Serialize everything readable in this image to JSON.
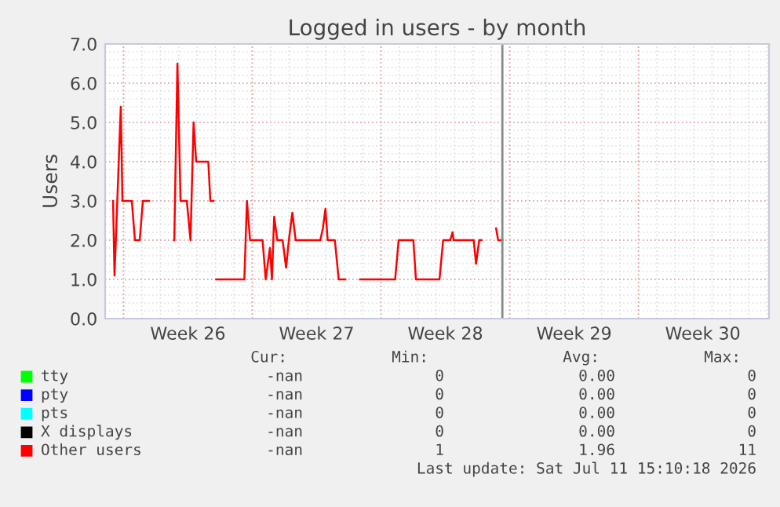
{
  "chart_data": {
    "type": "line",
    "title": "Logged in users - by month",
    "ylabel": "Users",
    "xlim": [
      "2026-06-20T00:00",
      "2026-07-26T02:24"
    ],
    "xticks": [
      {
        "value": "2026-06-24T12:00",
        "label": "Week 26"
      },
      {
        "value": "2026-07-01T12:00",
        "label": "Week 27"
      },
      {
        "value": "2026-07-08T12:00",
        "label": "Week 28"
      },
      {
        "value": "2026-07-15T12:00",
        "label": "Week 29"
      },
      {
        "value": "2026-07-22T12:00",
        "label": "Week 30"
      }
    ],
    "ylim": [
      0,
      7
    ],
    "yticks": [
      {
        "value": 0,
        "label": "0.0"
      },
      {
        "value": 1,
        "label": "1.0"
      },
      {
        "value": 2,
        "label": "2.0"
      },
      {
        "value": 3,
        "label": "3.0"
      },
      {
        "value": 4,
        "label": "4.0"
      },
      {
        "value": 5,
        "label": "5.0"
      },
      {
        "value": 6,
        "label": "6.0"
      },
      {
        "value": 7,
        "label": "7.0"
      }
    ],
    "grid": true,
    "legend": "bottom",
    "series": [
      {
        "name": "tty",
        "color": "#00ff00"
      },
      {
        "name": "pty",
        "color": "#0000ff"
      },
      {
        "name": "pts",
        "color": "#00ffff"
      },
      {
        "name": "X displays",
        "color": "#000000"
      },
      {
        "name": "Other users",
        "color": "#ff0000",
        "x": [
          "2026-06-20T10:19",
          "2026-06-20T12:14",
          "2026-06-20T20:24",
          "2026-06-20T22:34",
          "2026-06-21T10:48",
          "2026-06-21T14:53",
          "2026-06-21T21:07",
          "2026-06-22T01:12",
          "2026-06-22T09:22",
          "2026-06-23T00:00",
          "2026-06-23T18:14",
          "2026-06-23T22:19",
          "2026-06-24T02:24",
          "2026-06-24T10:34",
          "2026-06-24T15:22",
          "2026-06-24T19:26",
          "2026-06-24T22:48",
          "2026-06-25T14:38",
          "2026-06-25T17:17",
          "2026-06-25T21:22",
          "2026-06-25T22:48",
          "2026-06-26T00:58",
          "2026-06-27T13:41",
          "2026-06-27T17:02",
          "2026-06-27T21:07",
          "2026-06-28T13:26",
          "2026-06-28T17:31",
          "2026-06-28T23:02",
          "2026-06-29T01:41",
          "2026-06-29T04:34",
          "2026-06-29T08:38",
          "2026-06-29T15:36",
          "2026-06-29T20:10",
          "2026-06-29T23:46",
          "2026-06-30T04:19",
          "2026-06-30T08:38",
          "2026-07-01T16:48",
          "2026-07-01T20:10",
          "2026-07-01T23:31",
          "2026-07-02T02:24",
          "2026-07-02T11:46",
          "2026-07-02T16:48",
          "2026-07-03T01:26",
          "2026-07-03T12:00",
          "2026-07-03T20:38",
          "2026-07-05T18:29",
          "2026-07-05T23:02",
          "2026-07-06T18:14",
          "2026-07-06T21:36",
          "2026-07-08T04:19",
          "2026-07-08T09:07",
          "2026-07-08T18:14",
          "2026-07-08T21:22",
          "2026-07-08T22:48",
          "2026-07-10T00:58",
          "2026-07-10T04:05",
          "2026-07-10T08:10",
          "2026-07-10T11:02",
          "2026-07-11T00:00",
          "2026-07-11T06:14",
          "2026-07-11T08:53",
          "2026-07-11T14:24"
        ],
        "values": [
          3.0,
          1.1,
          5.4,
          3.0,
          3.0,
          2.0,
          2.0,
          3.0,
          3.0,
          null,
          2.0,
          6.5,
          3.0,
          3.0,
          2.0,
          5.0,
          4.0,
          4.0,
          3.0,
          3.0,
          null,
          1.0,
          1.0,
          3.0,
          2.0,
          2.0,
          1.0,
          1.8,
          1.0,
          2.6,
          2.0,
          2.0,
          1.3,
          2.0,
          2.7,
          2.0,
          2.0,
          2.3,
          2.8,
          2.0,
          2.0,
          1.0,
          1.0,
          null,
          1.0,
          1.0,
          2.0,
          2.0,
          1.0,
          1.0,
          2.0,
          2.0,
          2.2,
          2.0,
          2.0,
          1.4,
          2.0,
          2.0,
          null,
          2.3,
          2.0,
          2.0
        ]
      }
    ],
    "ref_lines": [
      {
        "axis": "x",
        "value": "2026-07-11T14:24",
        "color": "#888888"
      }
    ],
    "annotations": [
      "Cur:",
      "Min:",
      "Avg:",
      "Max:",
      "-nan",
      "0",
      "0.00",
      "0",
      "-nan",
      "0",
      "0.00",
      "0",
      "-nan",
      "0",
      "0.00",
      "0",
      "-nan",
      "0",
      "0.00",
      "0",
      "-nan",
      "1",
      "1.96",
      "11",
      "Last update: Sat Jul 11 15:10:18 2026"
    ]
  }
}
